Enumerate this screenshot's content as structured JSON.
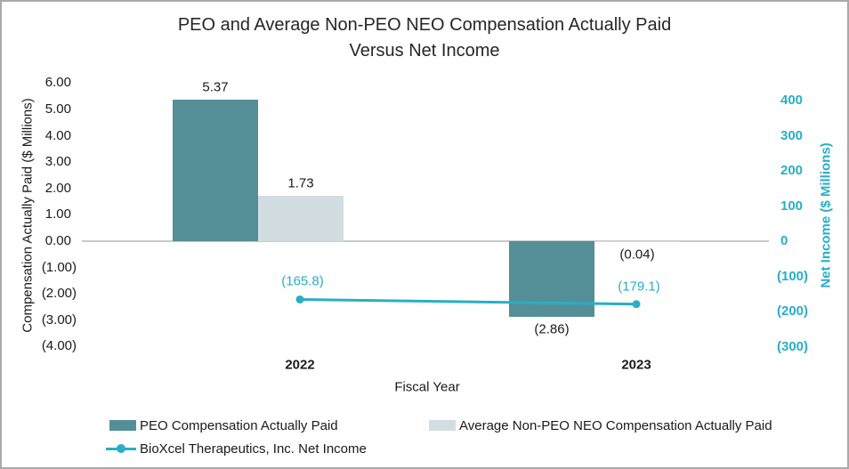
{
  "title_lines": [
    "PEO and Average Non-PEO NEO Compensation Actually Paid",
    "Versus Net Income"
  ],
  "colors": {
    "peo_bar": "#548f97",
    "non_peo_bar": "#d2dde1",
    "net_income": "#29aec7",
    "zero_line": "#c9c9c9",
    "text": "#1a1a1a"
  },
  "chart_data": {
    "type": "bar+line combo (dual axis)",
    "title": "PEO and Average Non-PEO NEO Compensation Actually Paid Versus Net Income",
    "categories": [
      "2022",
      "2023"
    ],
    "xlabel": "Fiscal Year",
    "grid": false,
    "legend_position": "bottom",
    "series": [
      {
        "name": "PEO Compensation Actually Paid",
        "type": "bar",
        "axis": "left",
        "color": "#548f97",
        "values": [
          5.37,
          -2.86
        ],
        "labels": [
          "5.37",
          "(2.86)"
        ]
      },
      {
        "name": "Average Non-PEO NEO Compensation Actually Paid",
        "type": "bar",
        "axis": "left",
        "color": "#d2dde1",
        "values": [
          1.73,
          -0.04
        ],
        "labels": [
          "1.73",
          "(0.04)"
        ]
      },
      {
        "name": "BioXcel Therapeutics, Inc. Net Income",
        "type": "line",
        "axis": "right",
        "color": "#29aec7",
        "values": [
          -165.8,
          -179.1
        ],
        "labels": [
          "(165.8)",
          "(179.1)"
        ]
      }
    ],
    "left_axis": {
      "label": "Compensation Actually Paid ($ Millions)",
      "range": [
        -4,
        6
      ],
      "ticks": [
        {
          "v": 6,
          "t": "6.00"
        },
        {
          "v": 5,
          "t": "5.00"
        },
        {
          "v": 4,
          "t": "4.00"
        },
        {
          "v": 3,
          "t": "3.00"
        },
        {
          "v": 2,
          "t": "2.00"
        },
        {
          "v": 1,
          "t": "1.00"
        },
        {
          "v": 0,
          "t": "0.00"
        },
        {
          "v": -1,
          "t": "(1.00)"
        },
        {
          "v": -2,
          "t": "(2.00)"
        },
        {
          "v": -3,
          "t": "(3.00)"
        },
        {
          "v": -4,
          "t": "(4.00)"
        }
      ]
    },
    "right_axis": {
      "label": "Net Income ($ Millions)",
      "range": [
        -300,
        400
      ],
      "color": "#29aec7",
      "ticks": [
        {
          "v": 400,
          "t": "400"
        },
        {
          "v": 300,
          "t": "300"
        },
        {
          "v": 200,
          "t": "200"
        },
        {
          "v": 100,
          "t": "100"
        },
        {
          "v": 0,
          "t": "0"
        },
        {
          "v": -100,
          "t": "(100)"
        },
        {
          "v": -200,
          "t": "(200)"
        },
        {
          "v": -300,
          "t": "(300)"
        }
      ]
    }
  }
}
